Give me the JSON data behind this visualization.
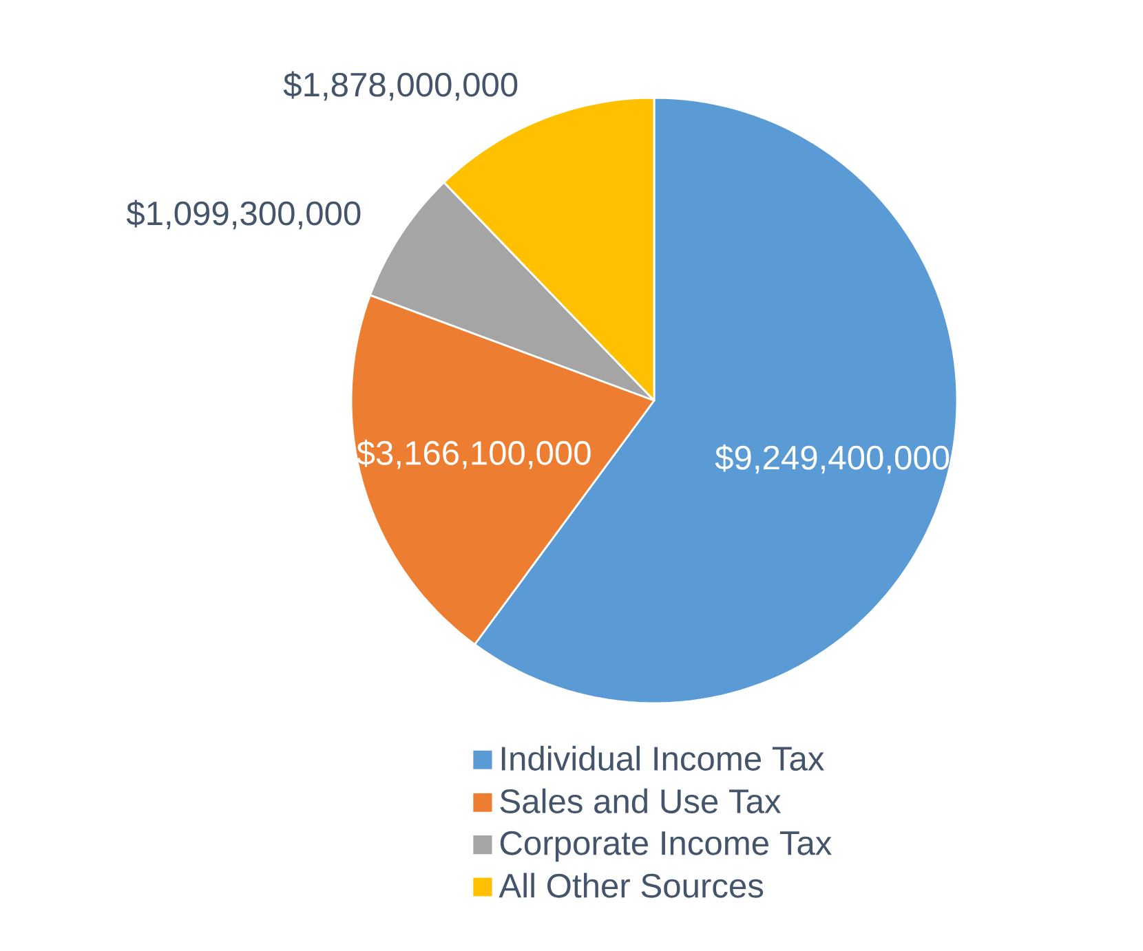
{
  "chart_data": {
    "type": "pie",
    "categories": [
      "Individual Income Tax",
      "Sales and Use Tax",
      "Corporate Income Tax",
      "All Other Sources"
    ],
    "values": [
      9249400000,
      3166100000,
      1099300000,
      1878000000
    ],
    "colors": [
      "#5b9bd5",
      "#ed7d31",
      "#a5a5a5",
      "#ffc000"
    ],
    "value_labels": [
      "$9,249,400,000",
      "$3,166,100,000",
      "$1,099,300,000",
      "$1,878,000,000"
    ],
    "legend": "bottom"
  }
}
